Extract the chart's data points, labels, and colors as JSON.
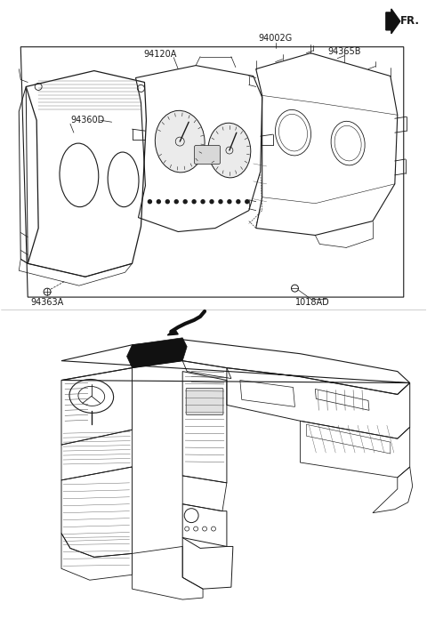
{
  "bg_color": "#ffffff",
  "line_color": "#1a1a1a",
  "text_color": "#1a1a1a",
  "labels": {
    "FR": "FR.",
    "part1": "94002G",
    "part2": "94365B",
    "part3": "94120A",
    "part4": "94360D",
    "part5": "94363A",
    "part6": "1018AD"
  },
  "fig_width": 4.8,
  "fig_height": 6.96,
  "dpi": 100
}
